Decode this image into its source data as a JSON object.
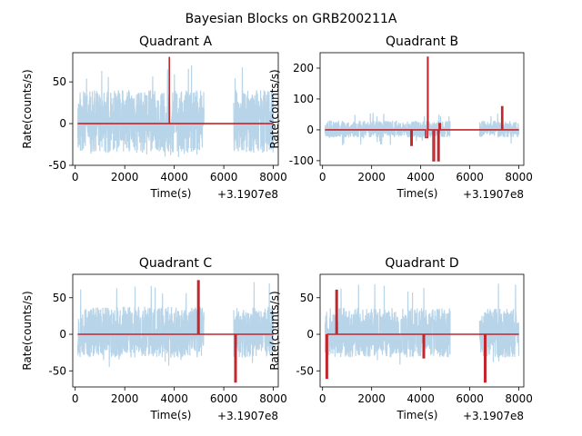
{
  "suptitle": "Bayesian Blocks on GRB200211A",
  "colors": {
    "signal": "#b8d4e9",
    "blocks": "#c1272d",
    "axes": "#000000"
  },
  "chart_data": [
    {
      "type": "line",
      "title": "Quadrant A",
      "xlabel": "Time(s)",
      "ylabel": "Rate(counts/s)",
      "offset_text": "+3.1907e8",
      "xlim": [
        -100,
        8200
      ],
      "ylim": [
        -50,
        85
      ],
      "xticks": [
        0,
        2000,
        4000,
        6000,
        8000
      ],
      "yticks": [
        -50,
        0,
        50
      ],
      "signal": {
        "segments": [
          [
            100,
            5200
          ],
          [
            6400,
            8000
          ]
        ],
        "low": -35,
        "high": 40,
        "peak_high": 70,
        "peak_low": -42,
        "seed": 11
      },
      "blocks": {
        "x": [
          100,
          3800,
          3800,
          3800,
          3800,
          8000
        ],
        "y": [
          0,
          0,
          80,
          80,
          0,
          0
        ]
      }
    },
    {
      "type": "line",
      "title": "Quadrant B",
      "xlabel": "Time(s)",
      "ylabel": "Rate(counts/s)",
      "offset_text": "+3.1907e8",
      "xlim": [
        -100,
        8200
      ],
      "ylim": [
        -115,
        250
      ],
      "xticks": [
        0,
        2000,
        4000,
        6000,
        8000
      ],
      "yticks": [
        -100,
        0,
        100,
        200
      ],
      "signal": {
        "segments": [
          [
            100,
            5200
          ],
          [
            6400,
            8000
          ]
        ],
        "low": -25,
        "high": 30,
        "peak_high": 55,
        "peak_low": -50,
        "seed": 23
      },
      "blocks": {
        "x": [
          100,
          3600,
          3600,
          3650,
          3650,
          4200,
          4200,
          4280,
          4280,
          4300,
          4300,
          4500,
          4500,
          4560,
          4560,
          4700,
          4700,
          4750,
          4750,
          4800,
          4800,
          7300,
          7300,
          7340,
          7340,
          8000
        ],
        "y": [
          0,
          0,
          -50,
          -50,
          0,
          0,
          -25,
          -25,
          235,
          235,
          0,
          0,
          -100,
          -100,
          0,
          0,
          -100,
          -100,
          20,
          20,
          0,
          0,
          75,
          75,
          0,
          0
        ]
      }
    },
    {
      "type": "line",
      "title": "Quadrant C",
      "xlabel": "Time(s)",
      "ylabel": "Rate(counts/s)",
      "offset_text": "+3.1907e8",
      "xlim": [
        -100,
        8200
      ],
      "ylim": [
        -72,
        82
      ],
      "xticks": [
        0,
        2000,
        4000,
        6000,
        8000
      ],
      "yticks": [
        -50,
        0,
        50
      ],
      "signal": {
        "segments": [
          [
            100,
            5200
          ],
          [
            6400,
            8000
          ]
        ],
        "low": -32,
        "high": 38,
        "peak_high": 72,
        "peak_low": -45,
        "seed": 37
      },
      "blocks": {
        "x": [
          100,
          4950,
          4950,
          5000,
          5000,
          6450,
          6450,
          6500,
          6500,
          8000
        ],
        "y": [
          0,
          0,
          73,
          73,
          0,
          0,
          -65,
          -65,
          0,
          0
        ]
      }
    },
    {
      "type": "line",
      "title": "Quadrant D",
      "xlabel": "Time(s)",
      "ylabel": "Rate(counts/s)",
      "offset_text": "+3.1907e8",
      "xlim": [
        -100,
        8200
      ],
      "ylim": [
        -72,
        82
      ],
      "xticks": [
        0,
        2000,
        4000,
        6000,
        8000
      ],
      "yticks": [
        -50,
        0,
        50
      ],
      "signal": {
        "segments": [
          [
            100,
            5200
          ],
          [
            6400,
            8000
          ]
        ],
        "low": -32,
        "high": 36,
        "peak_high": 74,
        "peak_low": -48,
        "seed": 53
      },
      "blocks": {
        "x": [
          150,
          150,
          200,
          200,
          550,
          550,
          600,
          600,
          4100,
          4100,
          4150,
          4150,
          6600,
          6600,
          6650,
          6650,
          8000
        ],
        "y": [
          0,
          -60,
          -60,
          0,
          0,
          60,
          60,
          0,
          0,
          -32,
          -32,
          0,
          0,
          -65,
          -65,
          0,
          0
        ]
      }
    }
  ]
}
